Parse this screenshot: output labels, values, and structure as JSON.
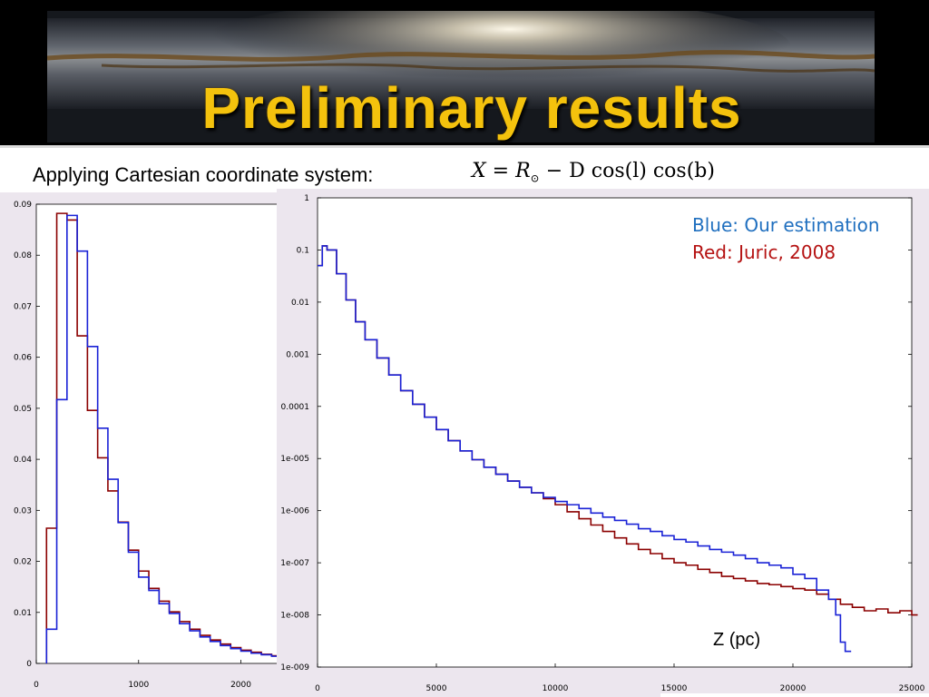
{
  "slide": {
    "title": "Preliminary results",
    "subtitle": "Applying Cartesian coordinate system:",
    "formula": {
      "lhs": "X",
      "eq": " = ",
      "r": "R",
      "r_sub": "⊙",
      "rest": " − D cos(l) cos(b)"
    },
    "legend": {
      "blue": "Blue: Our estimation",
      "red": "Red: Juric, 2008"
    },
    "x_axis_label": "Z (pc)",
    "colors": {
      "title": "#f4c20d",
      "blue_series": "#1a22d6",
      "red_series": "#8b0000",
      "legend_blue_text": "#1f6fbf",
      "legend_red_text": "#b51212",
      "plot_bg": "#ece6ee"
    }
  },
  "chart_data": [
    {
      "type": "line",
      "step": true,
      "title": "",
      "xlabel": "",
      "ylabel": "",
      "xlim": [
        0,
        2350
      ],
      "ylim": [
        0,
        0.09
      ],
      "x_ticks": [
        "0",
        "1000",
        "2000"
      ],
      "y_ticks": [
        "0",
        "0.01",
        "0.02",
        "0.03",
        "0.04",
        "0.05",
        "0.06",
        "0.07",
        "0.08",
        "0.09"
      ],
      "bin_width": 100,
      "series": [
        {
          "color": "#1a22d6",
          "x": [
            100,
            200,
            300,
            400,
            500,
            600,
            700,
            800,
            900,
            1000,
            1100,
            1200,
            1300,
            1400,
            1500,
            1600,
            1700,
            1800,
            1900,
            2000,
            2100,
            2200,
            2300
          ],
          "values": [
            0.0067,
            0.0517,
            0.0878,
            0.0808,
            0.0621,
            0.0461,
            0.0361,
            0.0276,
            0.0218,
            0.0169,
            0.0143,
            0.0117,
            0.0098,
            0.0078,
            0.0064,
            0.0052,
            0.0043,
            0.0035,
            0.0029,
            0.0024,
            0.002,
            0.0017,
            0.0014
          ]
        },
        {
          "color": "#8b0000",
          "x": [
            100,
            200,
            300,
            400,
            500,
            600,
            700,
            800,
            900,
            1000,
            1100,
            1200,
            1300,
            1400,
            1500,
            1600,
            1700,
            1800,
            1900,
            2000,
            2100,
            2200,
            2300
          ],
          "values": [
            0.0265,
            0.0882,
            0.0869,
            0.0642,
            0.0496,
            0.0403,
            0.0338,
            0.0277,
            0.0222,
            0.0181,
            0.0147,
            0.0122,
            0.0101,
            0.0082,
            0.0067,
            0.0055,
            0.0046,
            0.0038,
            0.0031,
            0.0026,
            0.0022,
            0.0018,
            0.0015
          ]
        }
      ]
    },
    {
      "type": "line",
      "step": true,
      "title": "",
      "xlabel": "Z (pc)",
      "ylabel": "",
      "xlim": [
        0,
        25000
      ],
      "ylim": [
        1e-09,
        1
      ],
      "yscale": "log",
      "x_ticks": [
        "0",
        "5000",
        "10000",
        "15000",
        "20000",
        "25000"
      ],
      "y_ticks": [
        "1",
        "0.1",
        "0.01",
        "0.001",
        "0.0001",
        "1e-005",
        "1e-006",
        "1e-007",
        "1e-008",
        "1e-009"
      ],
      "series": [
        {
          "name": "Our estimation",
          "color": "#1a22d6",
          "x": [
            0,
            200,
            400,
            800,
            1200,
            1600,
            2000,
            2500,
            3000,
            3500,
            4000,
            4500,
            5000,
            5500,
            6000,
            6500,
            7000,
            7500,
            8000,
            8500,
            9000,
            9500,
            10000,
            10500,
            11000,
            11500,
            12000,
            12500,
            13000,
            13500,
            14000,
            14500,
            15000,
            15500,
            16000,
            16500,
            17000,
            17500,
            18000,
            18500,
            19000,
            19500,
            20000,
            20500,
            21000,
            21500,
            21800,
            22000,
            22200
          ],
          "values": [
            0.05,
            0.12,
            0.1,
            0.035,
            0.011,
            0.0042,
            0.0019,
            0.00085,
            0.0004,
            0.0002,
            0.00011,
            6.2e-05,
            3.6e-05,
            2.2e-05,
            1.4e-05,
            9.5e-06,
            6.8e-06,
            5e-06,
            3.7e-06,
            2.8e-06,
            2.2e-06,
            1.8e-06,
            1.5e-06,
            1.3e-06,
            1.1e-06,
            9e-07,
            7.5e-07,
            6.5e-07,
            5.5e-07,
            4.5e-07,
            4e-07,
            3.3e-07,
            2.8e-07,
            2.5e-07,
            2.1e-07,
            1.8e-07,
            1.6e-07,
            1.4e-07,
            1.2e-07,
            1e-07,
            9e-08,
            8e-08,
            6e-08,
            5e-08,
            3e-08,
            2e-08,
            1e-08,
            3e-09,
            2e-09
          ]
        },
        {
          "name": "Juric, 2008",
          "color": "#8b0000",
          "x": [
            0,
            200,
            400,
            800,
            1200,
            1600,
            2000,
            2500,
            3000,
            3500,
            4000,
            4500,
            5000,
            5500,
            6000,
            6500,
            7000,
            7500,
            8000,
            8500,
            9000,
            9500,
            10000,
            10500,
            11000,
            11500,
            12000,
            12500,
            13000,
            13500,
            14000,
            14500,
            15000,
            15500,
            16000,
            16500,
            17000,
            17500,
            18000,
            18500,
            19000,
            19500,
            20000,
            20500,
            21000,
            21500,
            22000,
            22500,
            23000,
            23500,
            24000,
            24500,
            25000
          ],
          "values": [
            0.05,
            0.12,
            0.1,
            0.035,
            0.011,
            0.0042,
            0.0019,
            0.00085,
            0.0004,
            0.0002,
            0.00011,
            6.2e-05,
            3.6e-05,
            2.2e-05,
            1.4e-05,
            9.5e-06,
            6.8e-06,
            5e-06,
            3.7e-06,
            2.8e-06,
            2.2e-06,
            1.7e-06,
            1.3e-06,
            9.5e-07,
            7e-07,
            5.3e-07,
            4e-07,
            3e-07,
            2.3e-07,
            1.8e-07,
            1.5e-07,
            1.2e-07,
            1e-07,
            9e-08,
            7.5e-08,
            6.5e-08,
            5.5e-08,
            5e-08,
            4.5e-08,
            4e-08,
            3.8e-08,
            3.5e-08,
            3.2e-08,
            3e-08,
            2.5e-08,
            2e-08,
            1.6e-08,
            1.4e-08,
            1.2e-08,
            1.3e-08,
            1.1e-08,
            1.2e-08,
            1e-08
          ]
        }
      ]
    }
  ]
}
